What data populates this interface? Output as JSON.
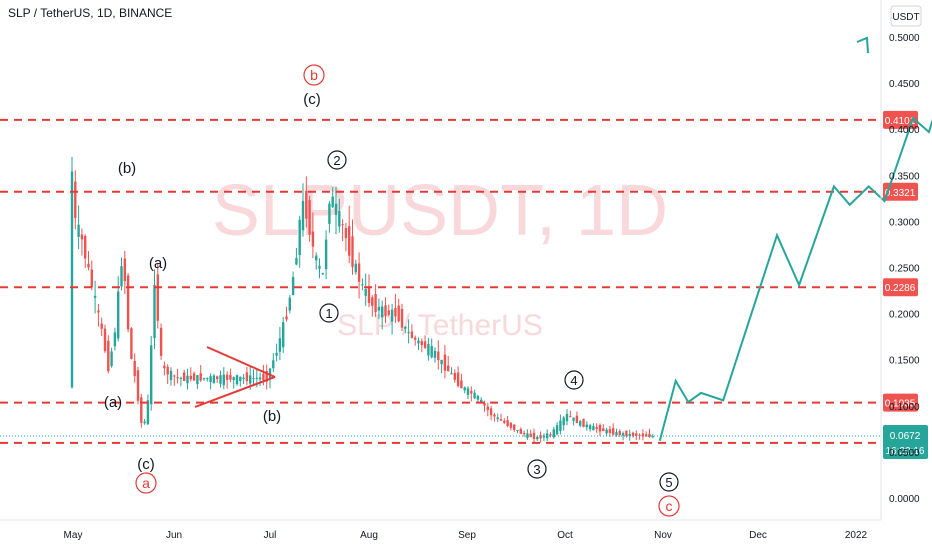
{
  "header": {
    "title": "SLP / TetherUS, 1D, BINANCE"
  },
  "watermark": {
    "symbol": "SLPUSDT, 1D",
    "name": "SLP / TetherUS"
  },
  "currency": "USDT",
  "colors": {
    "line": "#e53935",
    "projection": "#26a69a",
    "candle_up": "#26a69a",
    "candle_down": "#ef5350",
    "price_tag": "#ef5350",
    "last_tag": "#26a69a",
    "axis_text": "#131722"
  },
  "chart_data": {
    "type": "candlestick",
    "y_ticks": [
      "0.5000",
      "0.4500",
      "0.4000",
      "0.3500",
      "0.3000",
      "0.2500",
      "0.2000",
      "0.1500",
      "0.1000",
      "0.0500",
      "0.0000"
    ],
    "y_range": [
      0.0,
      0.5
    ],
    "x_ticks": [
      "May",
      "Jun",
      "Jul",
      "Aug",
      "Sep",
      "Oct",
      "Nov",
      "Dec",
      "2022"
    ],
    "levels": [
      {
        "label": "0.4101",
        "value": 0.4101
      },
      {
        "label": "0.3321",
        "value": 0.3321
      },
      {
        "label": "0.2286",
        "value": 0.2286
      },
      {
        "label": "0.1035",
        "value": 0.1035
      },
      {
        "label": "0.0598",
        "value": 0.0598
      }
    ],
    "last_price": {
      "label": "0.0672",
      "countdown": "16:20:16",
      "value": 0.0672
    },
    "wave_labels_black": [
      "(b)",
      "(a)",
      "(a)",
      "(c)",
      "(b)",
      "(c)",
      "2",
      "1",
      "4",
      "3",
      "5"
    ],
    "wave_labels_red": [
      "b",
      "a",
      "c"
    ],
    "projection_path": [
      [
        "2021-10-31",
        0.062
      ],
      [
        "2021-11-05",
        0.127
      ],
      [
        "2021-11-09",
        0.104
      ],
      [
        "2021-11-13",
        0.114
      ],
      [
        "2021-11-20",
        0.106
      ],
      [
        "2021-12-07",
        0.285
      ],
      [
        "2021-12-14",
        0.231
      ],
      [
        "2021-12-25",
        0.338
      ],
      [
        "2021-12-30",
        0.318
      ],
      [
        "2022-01-05",
        0.338
      ],
      [
        "2022-01-10",
        0.322
      ],
      [
        "2022-01-19",
        0.412
      ],
      [
        "2022-01-24",
        0.397
      ],
      [
        "2022-02-02",
        0.495
      ],
      [
        "2022-02-04",
        0.486
      ]
    ]
  }
}
